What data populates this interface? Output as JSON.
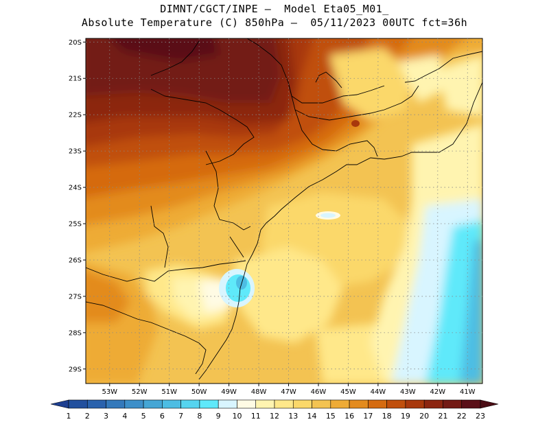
{
  "header": {
    "line1": "DIMNT/CGCT/INPE –  Model Eta05_M01_",
    "line2": "Absolute Temperature (C) 850hPa –  05/11/2023 00UTC fct=36h"
  },
  "map": {
    "lon_range": [
      -53.8,
      -40.5
    ],
    "lat_range": [
      -29.4,
      -19.9
    ],
    "lat_ticks": [
      "20S",
      "21S",
      "22S",
      "23S",
      "24S",
      "25S",
      "26S",
      "27S",
      "28S",
      "29S"
    ],
    "lon_ticks": [
      "53W",
      "52W",
      "51W",
      "50W",
      "49W",
      "48W",
      "47W",
      "46W",
      "45W",
      "44W",
      "43W",
      "42W",
      "41W"
    ]
  },
  "colorbar": {
    "labels": [
      "1",
      "2",
      "3",
      "4",
      "5",
      "6",
      "7",
      "8",
      "9",
      "10",
      "11",
      "12",
      "13",
      "14",
      "15",
      "16",
      "17",
      "18",
      "19",
      "20",
      "21",
      "22",
      "23"
    ],
    "colors": [
      "#1d3f91",
      "#22509e",
      "#2a62ad",
      "#3479bb",
      "#3d8fc9",
      "#45a6d5",
      "#4dbde3",
      "#55d4ef",
      "#5fe9fa",
      "#d8f5ff",
      "#fffbe4",
      "#fff4b0",
      "#ffe88a",
      "#fbd86a",
      "#f3c352",
      "#eeab36",
      "#e38b1e",
      "#d56b10",
      "#c04f0c",
      "#a8380c",
      "#8c2510",
      "#731a14",
      "#5a0f18",
      "#4a0c14"
    ]
  }
}
